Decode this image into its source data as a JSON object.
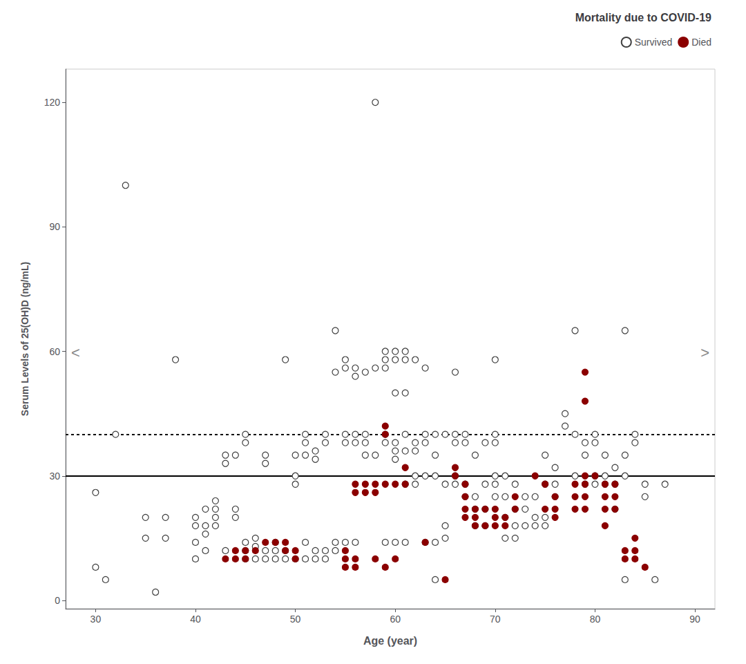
{
  "chart_data": {
    "type": "scatter",
    "title": "Mortality due to COVID-19",
    "x_label": "Age (year)",
    "y_label": "Serum Levels of 25(OH)D (ng/mL)",
    "xlim": [
      27,
      92
    ],
    "ylim": [
      -2,
      128
    ],
    "xticks": [
      30,
      40,
      50,
      60,
      70,
      80,
      90
    ],
    "yticks": [
      0,
      30,
      60,
      90,
      120
    ],
    "grid": false,
    "legend": "upper right",
    "hlines": [
      {
        "value": 30,
        "line_style": "solid"
      },
      {
        "value": 40,
        "line_style": "dotted"
      }
    ],
    "annotations": [
      "<",
      ">"
    ],
    "series": [
      {
        "name": "Survived",
        "color": "#404040",
        "marker": "open_circle",
        "x": [
          30,
          30,
          31,
          32,
          33,
          35,
          35,
          36,
          37,
          37,
          38,
          40,
          40,
          40,
          40,
          41,
          41,
          41,
          41,
          42,
          42,
          42,
          42,
          43,
          43,
          43,
          44,
          44,
          44,
          45,
          45,
          45,
          45,
          45,
          46,
          46,
          46,
          47,
          47,
          47,
          47,
          48,
          48,
          48,
          49,
          49,
          49,
          50,
          50,
          50,
          50,
          51,
          51,
          51,
          51,
          51,
          52,
          52,
          52,
          52,
          53,
          53,
          53,
          53,
          54,
          54,
          54,
          54,
          55,
          55,
          55,
          55,
          55,
          56,
          56,
          56,
          56,
          56,
          57,
          57,
          57,
          57,
          58,
          58,
          58,
          59,
          59,
          59,
          59,
          59,
          59,
          60,
          60,
          60,
          60,
          60,
          60,
          60,
          61,
          61,
          61,
          61,
          61,
          61,
          61,
          62,
          62,
          62,
          62,
          62,
          63,
          63,
          63,
          63,
          63,
          64,
          64,
          64,
          64,
          64,
          65,
          65,
          65,
          65,
          66,
          66,
          66,
          66,
          66,
          67,
          67,
          67,
          67,
          68,
          68,
          68,
          68,
          69,
          69,
          69,
          69,
          70,
          70,
          70,
          70,
          70,
          70,
          71,
          71,
          71,
          71,
          72,
          72,
          72,
          72,
          73,
          73,
          73,
          74,
          74,
          74,
          75,
          75,
          75,
          75,
          76,
          76,
          76,
          77,
          77,
          78,
          78,
          78,
          79,
          79,
          79,
          80,
          80,
          80,
          80,
          81,
          81,
          81,
          82,
          82,
          82,
          83,
          83,
          83,
          83,
          84,
          84,
          85,
          85,
          86,
          87
        ],
        "values": [
          8,
          26,
          5,
          40,
          100,
          20,
          15,
          2,
          20,
          15,
          58,
          20,
          18,
          14,
          10,
          22,
          18,
          16,
          12,
          22,
          20,
          18,
          24,
          35,
          33,
          12,
          22,
          20,
          35,
          40,
          38,
          14,
          10,
          12,
          15,
          13,
          10,
          35,
          33,
          12,
          10,
          10,
          12,
          14,
          10,
          12,
          58,
          30,
          28,
          10,
          35,
          40,
          38,
          35,
          14,
          10,
          36,
          34,
          10,
          12,
          40,
          38,
          12,
          10,
          65,
          55,
          14,
          12,
          58,
          56,
          40,
          38,
          14,
          56,
          54,
          40,
          38,
          14,
          55,
          40,
          38,
          35,
          120,
          56,
          35,
          60,
          58,
          56,
          40,
          38,
          14,
          60,
          58,
          50,
          38,
          36,
          34,
          14,
          60,
          58,
          50,
          40,
          36,
          28,
          14,
          58,
          38,
          36,
          30,
          28,
          56,
          40,
          38,
          30,
          14,
          40,
          35,
          30,
          14,
          5,
          40,
          28,
          18,
          15,
          55,
          40,
          38,
          30,
          28,
          40,
          38,
          28,
          25,
          35,
          25,
          22,
          18,
          38,
          28,
          22,
          18,
          58,
          40,
          38,
          30,
          28,
          25,
          30,
          25,
          20,
          15,
          28,
          22,
          18,
          15,
          25,
          22,
          18,
          25,
          20,
          18,
          35,
          28,
          20,
          18,
          32,
          28,
          25,
          45,
          42,
          65,
          40,
          30,
          38,
          35,
          28,
          40,
          38,
          30,
          28,
          35,
          30,
          28,
          32,
          28,
          22,
          65,
          35,
          30,
          5,
          40,
          38,
          28,
          25,
          5,
          28
        ]
      },
      {
        "name": "Died",
        "color": "#8B0000",
        "marker": "circle",
        "x": [
          43,
          44,
          44,
          45,
          45,
          46,
          47,
          48,
          49,
          49,
          50,
          50,
          55,
          55,
          55,
          56,
          56,
          56,
          56,
          57,
          57,
          58,
          58,
          58,
          59,
          59,
          59,
          59,
          60,
          60,
          61,
          61,
          63,
          65,
          66,
          66,
          67,
          67,
          67,
          67,
          68,
          68,
          68,
          69,
          69,
          70,
          70,
          70,
          71,
          71,
          72,
          72,
          74,
          75,
          75,
          76,
          76,
          76,
          78,
          78,
          78,
          79,
          79,
          79,
          79,
          79,
          79,
          80,
          81,
          81,
          81,
          81,
          82,
          82,
          82,
          83,
          83,
          84,
          84,
          84,
          85
        ],
        "values": [
          10,
          12,
          10,
          12,
          10,
          12,
          14,
          14,
          14,
          12,
          12,
          10,
          12,
          10,
          8,
          28,
          26,
          10,
          8,
          28,
          26,
          28,
          26,
          10,
          42,
          40,
          28,
          8,
          28,
          10,
          32,
          28,
          14,
          5,
          32,
          30,
          28,
          25,
          22,
          20,
          22,
          20,
          18,
          22,
          18,
          22,
          20,
          18,
          20,
          18,
          25,
          22,
          30,
          28,
          22,
          25,
          22,
          20,
          28,
          25,
          22,
          55,
          48,
          30,
          28,
          25,
          22,
          30,
          28,
          25,
          22,
          18,
          28,
          25,
          22,
          12,
          10,
          15,
          12,
          10,
          8
        ]
      }
    ]
  }
}
